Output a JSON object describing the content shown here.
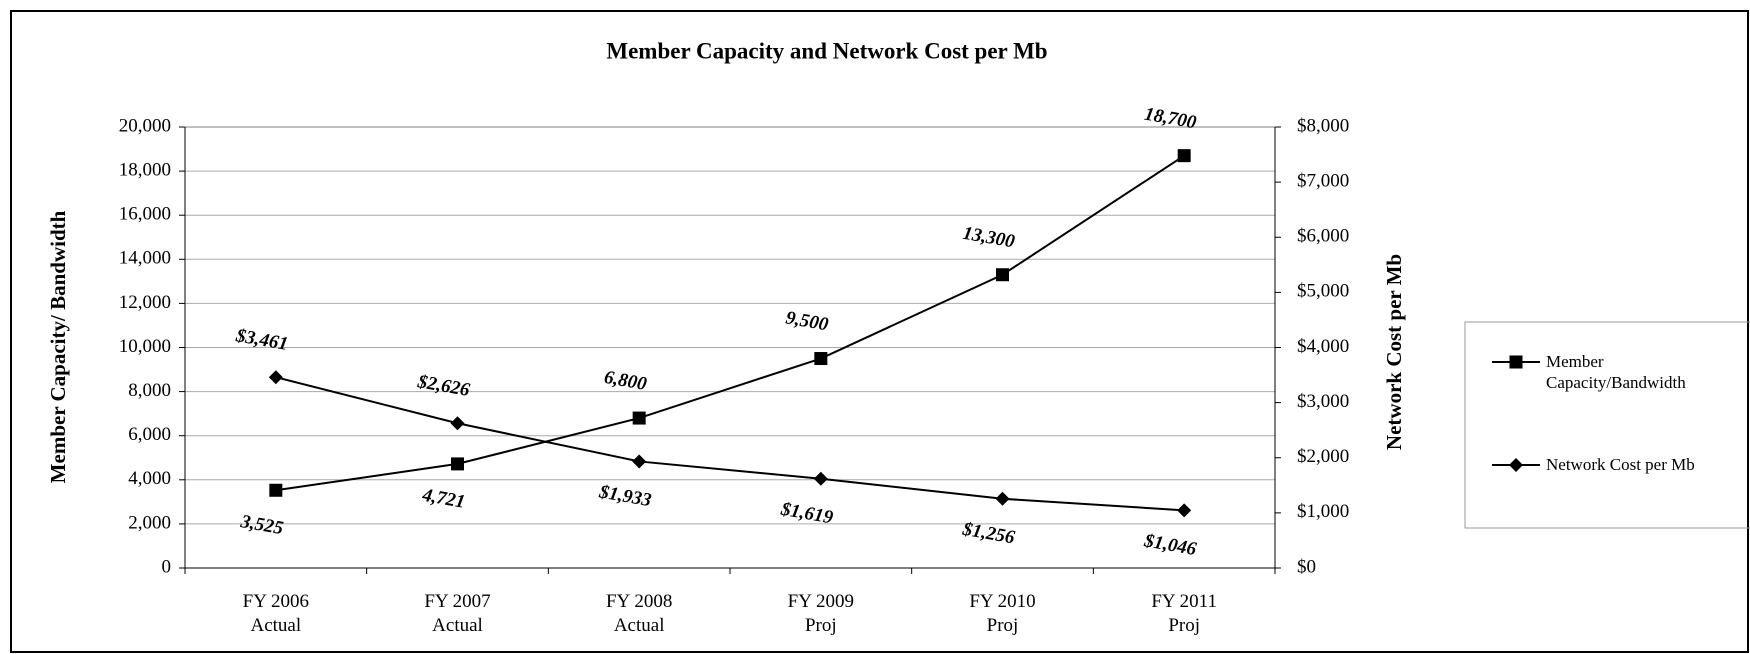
{
  "chart_data": {
    "type": "line",
    "title": "Member Capacity and Network Cost per Mb",
    "y_label": "Member Capacity/ Bandwidth",
    "y2_label": "Network Cost per Mb",
    "categories": [
      "FY 2006\nActual",
      "FY 2007\nActual",
      "FY 2008\nActual",
      "FY 2009\nProj",
      "FY 2010\nProj",
      "FY 2011\nProj"
    ],
    "series": [
      {
        "name": "Member Capacity/Bandwidth",
        "color": "#000000",
        "marker": "square",
        "values": [
          3525,
          4721,
          6800,
          9500,
          13300,
          18700
        ],
        "value_labels": [
          "3,525",
          "4,721",
          "6,800",
          "9,500",
          "13,300",
          "18,700"
        ]
      },
      {
        "name": "Network Cost per Mb",
        "color": "#000000",
        "marker": "diamond",
        "axis": "y2",
        "values": [
          3461,
          2626,
          1933,
          1619,
          1256,
          1046
        ],
        "value_labels": [
          "$3,461",
          "$2,626",
          "$1,933",
          "$1,619",
          "$1,256",
          "$1,046"
        ]
      }
    ],
    "ylim": [
      0,
      20000
    ],
    "yticks": [
      0,
      {
        "value": 2000,
        "label": "2,000"
      },
      {
        "value": 4000,
        "label": "4,000"
      },
      {
        "value": 6000,
        "label": "6,000"
      },
      {
        "value": 8000,
        "label": "8,000"
      },
      {
        "value": 10000,
        "label": "10,000"
      },
      {
        "value": 12000,
        "label": "12,000"
      },
      {
        "value": 14000,
        "label": "14,000"
      },
      {
        "value": 16000,
        "label": "16,000"
      },
      {
        "value": 18000,
        "label": "18,000"
      },
      {
        "value": 20000,
        "label": "20,000"
      }
    ],
    "y2lim": [
      0,
      8000
    ],
    "y2ticks": [
      {
        "value": 0,
        "label": "$0"
      },
      {
        "value": 1000,
        "label": "$1,000"
      },
      {
        "value": 2000,
        "label": "$2,000"
      },
      {
        "value": 3000,
        "label": "$3,000"
      },
      {
        "value": 4000,
        "label": "$4,000"
      },
      {
        "value": 5000,
        "label": "$5,000"
      },
      {
        "value": 6000,
        "label": "$6,000"
      },
      {
        "value": 7000,
        "label": "$7,000"
      },
      {
        "value": 8000,
        "label": "$8,000"
      }
    ],
    "grid": true,
    "legend": "right"
  }
}
